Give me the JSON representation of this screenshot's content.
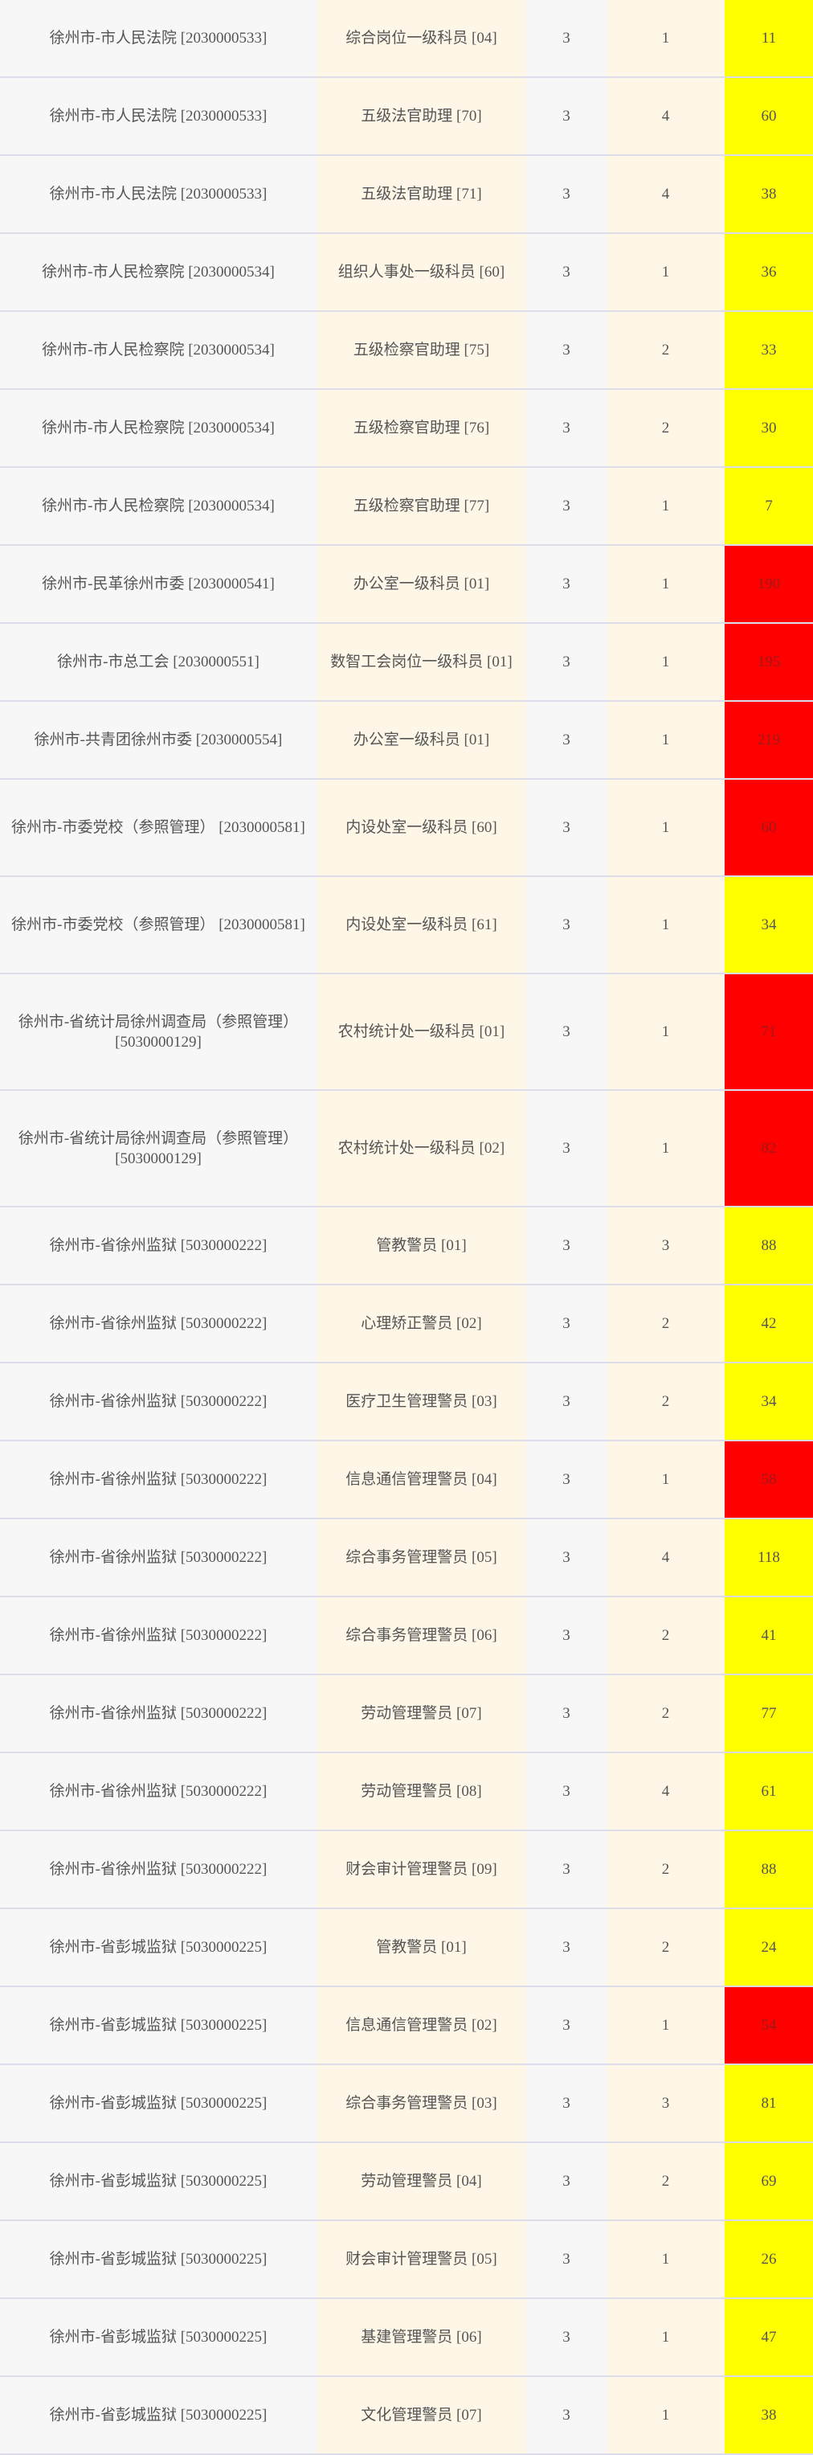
{
  "colors": {
    "high": "#ff0000",
    "normal": "#ffff00"
  },
  "rows": [
    {
      "unit": "徐州市-市人民法院 [2030000533]",
      "position": "综合岗位一级科员 [04]",
      "ratio": "3",
      "hires": "1",
      "applicants": "11",
      "level": "normal"
    },
    {
      "unit": "徐州市-市人民法院 [2030000533]",
      "position": "五级法官助理 [70]",
      "ratio": "3",
      "hires": "4",
      "applicants": "60",
      "level": "normal"
    },
    {
      "unit": "徐州市-市人民法院 [2030000533]",
      "position": "五级法官助理 [71]",
      "ratio": "3",
      "hires": "4",
      "applicants": "38",
      "level": "normal"
    },
    {
      "unit": "徐州市-市人民检察院 [2030000534]",
      "position": "组织人事处一级科员 [60]",
      "ratio": "3",
      "hires": "1",
      "applicants": "36",
      "level": "normal"
    },
    {
      "unit": "徐州市-市人民检察院 [2030000534]",
      "position": "五级检察官助理 [75]",
      "ratio": "3",
      "hires": "2",
      "applicants": "33",
      "level": "normal"
    },
    {
      "unit": "徐州市-市人民检察院 [2030000534]",
      "position": "五级检察官助理 [76]",
      "ratio": "3",
      "hires": "2",
      "applicants": "30",
      "level": "normal"
    },
    {
      "unit": "徐州市-市人民检察院 [2030000534]",
      "position": "五级检察官助理 [77]",
      "ratio": "3",
      "hires": "1",
      "applicants": "7",
      "level": "normal"
    },
    {
      "unit": "徐州市-民革徐州市委 [2030000541]",
      "position": "办公室一级科员 [01]",
      "ratio": "3",
      "hires": "1",
      "applicants": "190",
      "level": "high"
    },
    {
      "unit": "徐州市-市总工会 [2030000551]",
      "position": "数智工会岗位一级科员 [01]",
      "ratio": "3",
      "hires": "1",
      "applicants": "195",
      "level": "high"
    },
    {
      "unit": "徐州市-共青团徐州市委 [2030000554]",
      "position": "办公室一级科员 [01]",
      "ratio": "3",
      "hires": "1",
      "applicants": "219",
      "level": "high"
    },
    {
      "unit": "徐州市-市委党校（参照管理） [2030000581]",
      "position": "内设处室一级科员 [60]",
      "ratio": "3",
      "hires": "1",
      "applicants": "60",
      "level": "high",
      "size": "tall"
    },
    {
      "unit": "徐州市-市委党校（参照管理） [2030000581]",
      "position": "内设处室一级科员 [61]",
      "ratio": "3",
      "hires": "1",
      "applicants": "34",
      "level": "normal",
      "size": "tall"
    },
    {
      "unit": "徐州市-省统计局徐州调查局（参照管理） [5030000129]",
      "position": "农村统计处一级科员 [01]",
      "ratio": "3",
      "hires": "1",
      "applicants": "71",
      "level": "high",
      "size": "taller"
    },
    {
      "unit": "徐州市-省统计局徐州调查局（参照管理） [5030000129]",
      "position": "农村统计处一级科员 [02]",
      "ratio": "3",
      "hires": "1",
      "applicants": "82",
      "level": "high",
      "size": "taller"
    },
    {
      "unit": "徐州市-省徐州监狱 [5030000222]",
      "position": "管教警员 [01]",
      "ratio": "3",
      "hires": "3",
      "applicants": "88",
      "level": "normal"
    },
    {
      "unit": "徐州市-省徐州监狱 [5030000222]",
      "position": "心理矫正警员 [02]",
      "ratio": "3",
      "hires": "2",
      "applicants": "42",
      "level": "normal"
    },
    {
      "unit": "徐州市-省徐州监狱 [5030000222]",
      "position": "医疗卫生管理警员 [03]",
      "ratio": "3",
      "hires": "2",
      "applicants": "34",
      "level": "normal"
    },
    {
      "unit": "徐州市-省徐州监狱 [5030000222]",
      "position": "信息通信管理警员 [04]",
      "ratio": "3",
      "hires": "1",
      "applicants": "58",
      "level": "high"
    },
    {
      "unit": "徐州市-省徐州监狱 [5030000222]",
      "position": "综合事务管理警员 [05]",
      "ratio": "3",
      "hires": "4",
      "applicants": "118",
      "level": "normal"
    },
    {
      "unit": "徐州市-省徐州监狱 [5030000222]",
      "position": "综合事务管理警员 [06]",
      "ratio": "3",
      "hires": "2",
      "applicants": "41",
      "level": "normal"
    },
    {
      "unit": "徐州市-省徐州监狱 [5030000222]",
      "position": "劳动管理警员 [07]",
      "ratio": "3",
      "hires": "2",
      "applicants": "77",
      "level": "normal"
    },
    {
      "unit": "徐州市-省徐州监狱 [5030000222]",
      "position": "劳动管理警员 [08]",
      "ratio": "3",
      "hires": "4",
      "applicants": "61",
      "level": "normal"
    },
    {
      "unit": "徐州市-省徐州监狱 [5030000222]",
      "position": "财会审计管理警员 [09]",
      "ratio": "3",
      "hires": "2",
      "applicants": "88",
      "level": "normal"
    },
    {
      "unit": "徐州市-省彭城监狱 [5030000225]",
      "position": "管教警员 [01]",
      "ratio": "3",
      "hires": "2",
      "applicants": "24",
      "level": "normal"
    },
    {
      "unit": "徐州市-省彭城监狱 [5030000225]",
      "position": "信息通信管理警员 [02]",
      "ratio": "3",
      "hires": "1",
      "applicants": "54",
      "level": "high"
    },
    {
      "unit": "徐州市-省彭城监狱 [5030000225]",
      "position": "综合事务管理警员 [03]",
      "ratio": "3",
      "hires": "3",
      "applicants": "81",
      "level": "normal"
    },
    {
      "unit": "徐州市-省彭城监狱 [5030000225]",
      "position": "劳动管理警员 [04]",
      "ratio": "3",
      "hires": "2",
      "applicants": "69",
      "level": "normal"
    },
    {
      "unit": "徐州市-省彭城监狱 [5030000225]",
      "position": "财会审计管理警员 [05]",
      "ratio": "3",
      "hires": "1",
      "applicants": "26",
      "level": "normal"
    },
    {
      "unit": "徐州市-省彭城监狱 [5030000225]",
      "position": "基建管理警员 [06]",
      "ratio": "3",
      "hires": "1",
      "applicants": "47",
      "level": "normal"
    },
    {
      "unit": "徐州市-省彭城监狱 [5030000225]",
      "position": "文化管理警员 [07]",
      "ratio": "3",
      "hires": "1",
      "applicants": "38",
      "level": "normal"
    }
  ]
}
